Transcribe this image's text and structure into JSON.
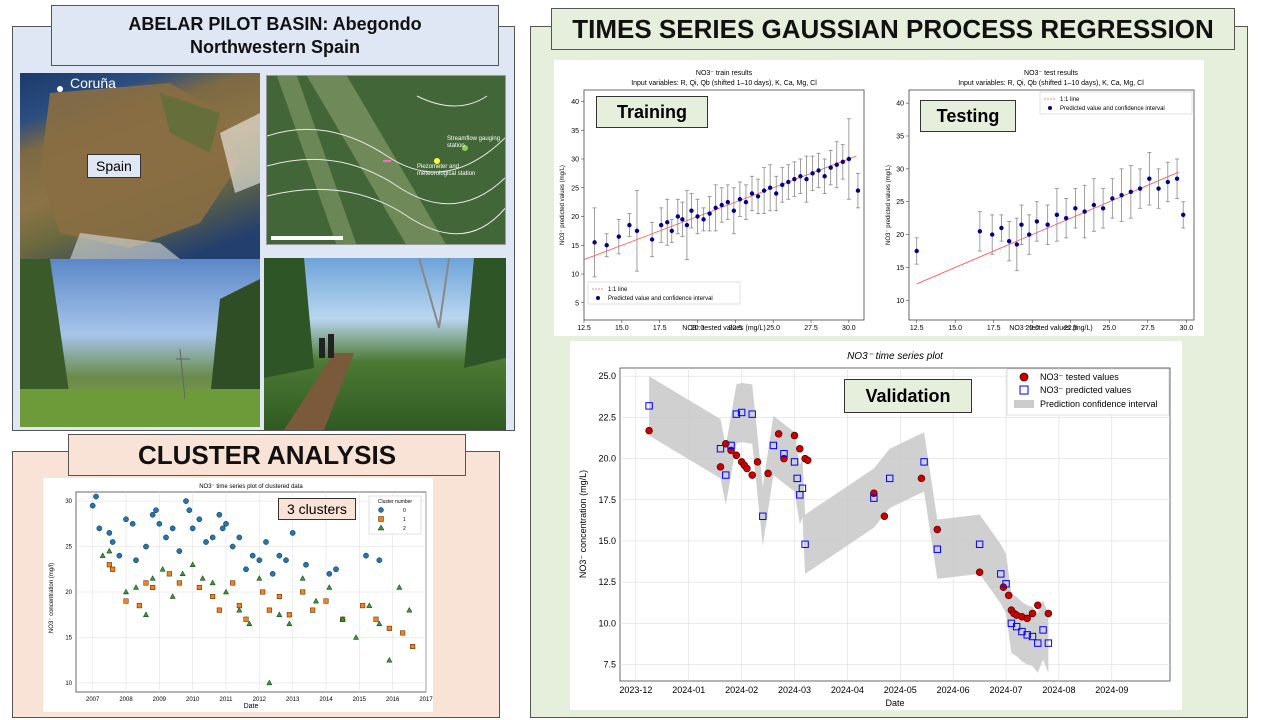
{
  "basin": {
    "title_line1": "ABELAR PILOT BASIN: Abegondo",
    "title_line2": "Northwestern Spain",
    "map_city": "Coruña",
    "map_country": "Spain",
    "station1": "Streamflow gauging station",
    "station2": "Piezometer and meteorological station"
  },
  "cluster": {
    "section_title": "CLUSTER ANALYSIS",
    "badge": "3 clusters",
    "chart_title": "NO3⁻ time series plot of clustered data",
    "xlabel": "Date",
    "ylabel": "NO3⁻ concentration (mg/l)",
    "legend_title": "Cluster number",
    "legend": [
      "0",
      "1",
      "2"
    ],
    "colors": [
      "#1f77b4",
      "#ff7f0e",
      "#2ca02c"
    ],
    "x_ticks": [
      "2007",
      "2008",
      "2009",
      "2010",
      "2011",
      "2012",
      "2013",
      "2014",
      "2015",
      "2016",
      "2017"
    ],
    "y_ticks": [
      "10",
      "15",
      "20",
      "25",
      "30"
    ]
  },
  "gpr": {
    "section_title": "TIMES SERIES GAUSSIAN PROCESS REGRESSION",
    "train_label": "Training",
    "test_label": "Testing",
    "validation_label": "Validation",
    "train_title": "NO3⁻ train results",
    "test_title": "NO3⁻ test results",
    "input_vars": "Input variables: R, Qi, Qb (shifted 1–10 days), K, Ca, Mg, Cl",
    "xlabel_tested": "NO3⁻ tested values (mg/L)",
    "ylabel_predicted": "NO3⁻ predicted values (mg/L)",
    "legend_line": "1:1 line",
    "legend_pred": "Predicted value and confidence interval",
    "train_x_ticks": [
      "12.5",
      "15.0",
      "17.5",
      "20.0",
      "22.5",
      "25.0",
      "27.5",
      "30.0"
    ],
    "train_y_ticks": [
      "5",
      "10",
      "15",
      "20",
      "25",
      "30",
      "35",
      "40"
    ],
    "test_x_ticks": [
      "12.5",
      "15.0",
      "17.5",
      "20.0",
      "22.5",
      "25.0",
      "27.5",
      "30.0"
    ],
    "test_y_ticks": [
      "10",
      "15",
      "20",
      "25",
      "30",
      "35",
      "40"
    ],
    "ts_title": "NO3⁻ time series plot",
    "ts_xlabel": "Date",
    "ts_ylabel": "NO3⁻ concentration (mg/L)",
    "ts_legend": [
      "NO3⁻ tested values",
      "NO3⁻ predicted values",
      "Prediction confidence interval"
    ],
    "ts_x_ticks": [
      "2023-12",
      "2024-01",
      "2024-02",
      "2024-03",
      "2024-04",
      "2024-05",
      "2024-06",
      "2024-07",
      "2024-08",
      "2024-09"
    ],
    "ts_y_ticks": [
      "7.5",
      "10.0",
      "12.5",
      "15.0",
      "17.5",
      "20.0",
      "22.5",
      "25.0"
    ]
  },
  "chart_data": [
    {
      "type": "scatter",
      "title": "NO3⁻ time series plot of clustered data",
      "xlabel": "Date",
      "ylabel": "NO3⁻ concentration (mg/l)",
      "xlim": [
        2006.5,
        2017.0
      ],
      "ylim": [
        9,
        31
      ],
      "series": [
        {
          "name": "0",
          "x": [
            2007.0,
            2007.1,
            2007.2,
            2007.5,
            2007.6,
            2007.8,
            2008.0,
            2008.2,
            2008.3,
            2008.6,
            2008.8,
            2008.9,
            2009.0,
            2009.2,
            2009.4,
            2009.6,
            2009.8,
            2009.9,
            2010.0,
            2010.2,
            2010.4,
            2010.6,
            2010.8,
            2010.9,
            2011.0,
            2011.2,
            2011.4,
            2011.6,
            2011.8,
            2012.0,
            2012.2,
            2012.4,
            2012.6,
            2012.8,
            2013.0,
            2013.4,
            2014.1,
            2014.3,
            2015.2,
            2015.6
          ],
          "y": [
            29.5,
            30.5,
            27.0,
            26.5,
            25.5,
            24.0,
            28.0,
            27.5,
            23.5,
            25.0,
            28.5,
            29.0,
            27.5,
            26.0,
            27.0,
            24.5,
            30.0,
            29.0,
            27.0,
            28.0,
            25.5,
            26.0,
            28.5,
            27.0,
            27.5,
            25.0,
            26.0,
            22.5,
            24.0,
            23.5,
            25.5,
            22.0,
            24.0,
            23.5,
            26.5,
            23.0,
            22.0,
            22.5,
            24.0,
            23.5
          ]
        },
        {
          "name": "1",
          "x": [
            2007.5,
            2007.6,
            2008.0,
            2008.4,
            2008.6,
            2008.8,
            2009.3,
            2009.6,
            2010.2,
            2010.6,
            2010.8,
            2011.2,
            2011.4,
            2011.6,
            2012.1,
            2012.3,
            2012.6,
            2012.9,
            2013.3,
            2013.6,
            2014.0,
            2014.5,
            2015.1,
            2015.5,
            2015.9,
            2016.3,
            2016.6
          ],
          "y": [
            23.0,
            22.5,
            19.0,
            18.5,
            21.0,
            20.5,
            22.0,
            21.0,
            20.5,
            19.5,
            18.0,
            21.0,
            18.5,
            17.0,
            20.0,
            18.0,
            19.5,
            17.5,
            20.0,
            18.0,
            19.0,
            17.0,
            18.5,
            17.0,
            16.0,
            15.5,
            14.0
          ]
        },
        {
          "name": "2",
          "x": [
            2007.3,
            2007.5,
            2008.0,
            2008.3,
            2008.6,
            2008.8,
            2009.1,
            2009.4,
            2009.7,
            2010.0,
            2010.3,
            2010.6,
            2011.0,
            2011.4,
            2011.7,
            2012.0,
            2012.3,
            2012.6,
            2012.9,
            2013.3,
            2013.7,
            2014.1,
            2014.5,
            2014.9,
            2015.3,
            2015.6,
            2015.9,
            2016.2,
            2016.5
          ],
          "y": [
            24.0,
            24.5,
            20.0,
            20.5,
            17.5,
            21.5,
            22.5,
            19.5,
            22.0,
            23.0,
            21.5,
            21.0,
            20.0,
            18.0,
            16.5,
            21.5,
            10.0,
            17.5,
            16.5,
            21.5,
            19.0,
            20.5,
            17.0,
            15.0,
            18.5,
            16.5,
            12.5,
            20.5,
            18.0
          ]
        }
      ]
    },
    {
      "type": "scatter",
      "title": "NO3⁻ train results",
      "xlabel": "NO3⁻ tested values (mg/L)",
      "ylabel": "NO3⁻ predicted values (mg/L)",
      "xlim": [
        12.5,
        31.0
      ],
      "ylim": [
        2,
        42
      ],
      "series": [
        {
          "name": "Predicted value and confidence interval",
          "x": [
            13.2,
            14.0,
            14.8,
            15.5,
            16.0,
            17.0,
            17.6,
            18.0,
            18.3,
            18.7,
            19.0,
            19.3,
            19.6,
            20.0,
            20.4,
            20.8,
            21.2,
            21.6,
            22.0,
            22.4,
            22.8,
            23.2,
            23.6,
            24.0,
            24.4,
            24.8,
            25.2,
            25.6,
            26.0,
            26.4,
            26.8,
            27.2,
            27.6,
            28.0,
            28.4,
            28.8,
            29.2,
            29.6,
            30.0,
            30.6
          ],
          "y": [
            15.5,
            15.0,
            16.5,
            18.5,
            17.5,
            16.0,
            18.5,
            19.0,
            17.5,
            20.0,
            19.5,
            18.5,
            21.0,
            20.0,
            19.5,
            20.5,
            21.5,
            22.0,
            22.5,
            21.0,
            23.0,
            22.5,
            24.0,
            23.5,
            24.5,
            25.0,
            24.0,
            25.5,
            26.0,
            26.5,
            27.0,
            26.5,
            27.5,
            28.0,
            27.0,
            28.5,
            29.0,
            29.5,
            30.0,
            24.5
          ],
          "err": [
            6,
            2,
            3,
            2,
            7,
            3,
            3,
            4,
            2,
            3,
            3,
            6,
            3,
            3,
            2,
            3,
            4,
            3,
            3,
            4,
            3,
            3,
            3,
            3,
            4,
            4,
            3,
            3,
            3,
            3,
            3,
            4,
            3,
            3,
            3,
            3,
            4,
            3,
            7,
            3
          ]
        },
        {
          "name": "1:1 line",
          "x": [
            12.5,
            30.5
          ],
          "y": [
            12.5,
            30.5
          ]
        }
      ]
    },
    {
      "type": "scatter",
      "title": "NO3⁻ test results",
      "xlabel": "NO3⁻ tested values (mg/L)",
      "ylabel": "NO3⁻ predicted values (mg/L)",
      "xlim": [
        12.0,
        30.5
      ],
      "ylim": [
        7,
        42
      ],
      "series": [
        {
          "name": "Predicted value and confidence interval",
          "x": [
            12.5,
            16.6,
            17.4,
            18.0,
            18.5,
            19.0,
            19.3,
            19.8,
            20.3,
            21.0,
            21.6,
            22.2,
            22.8,
            23.4,
            24.0,
            24.6,
            25.2,
            25.8,
            26.4,
            27.0,
            27.6,
            28.2,
            28.8,
            29.4,
            29.8
          ],
          "y": [
            17.5,
            20.5,
            20.0,
            21.0,
            19.0,
            18.5,
            21.5,
            20.0,
            22.0,
            21.5,
            23.0,
            22.5,
            24.0,
            23.5,
            24.5,
            24.0,
            25.5,
            26.0,
            26.5,
            27.0,
            28.5,
            27.0,
            28.0,
            28.5,
            23.0
          ],
          "err": [
            2,
            3,
            3,
            2,
            3,
            4,
            3,
            3,
            3,
            3,
            4,
            3,
            3,
            4,
            4,
            3,
            3,
            4,
            4,
            3,
            4,
            3,
            3,
            3,
            2
          ]
        },
        {
          "name": "1:1 line",
          "x": [
            12.5,
            29.5
          ],
          "y": [
            12.5,
            29.5
          ]
        }
      ]
    },
    {
      "type": "line",
      "title": "NO3⁻ time series plot",
      "xlabel": "Date",
      "ylabel": "NO3⁻ concentration (mg/L)",
      "xlim_months": [
        -1.3,
        9.1
      ],
      "ylim": [
        6.5,
        25.5
      ],
      "series": [
        {
          "name": "NO3⁻ tested values",
          "x": [
            -0.75,
            0.6,
            0.7,
            0.8,
            0.9,
            1.0,
            1.05,
            1.1,
            1.2,
            1.3,
            1.5,
            1.7,
            1.8,
            2.0,
            2.1,
            2.2,
            2.25,
            3.5,
            3.7,
            4.4,
            4.7,
            5.5,
            5.95,
            6.05,
            6.1,
            6.15,
            6.2,
            6.3,
            6.4,
            6.5,
            6.6,
            6.8
          ],
          "y": [
            21.7,
            19.5,
            20.9,
            20.5,
            20.2,
            19.8,
            19.6,
            19.4,
            19.0,
            19.8,
            19.1,
            21.5,
            20.0,
            21.4,
            20.6,
            20.0,
            19.9,
            17.9,
            16.5,
            18.8,
            15.7,
            13.1,
            12.2,
            11.7,
            10.8,
            10.6,
            10.5,
            10.4,
            10.3,
            10.6,
            11.1,
            10.6
          ]
        },
        {
          "name": "NO3⁻ predicted values",
          "x": [
            -0.75,
            0.6,
            0.7,
            0.8,
            0.9,
            1.0,
            1.2,
            1.4,
            1.6,
            1.8,
            2.0,
            2.05,
            2.1,
            2.15,
            2.2,
            3.5,
            3.8,
            4.45,
            4.7,
            5.5,
            5.9,
            6.0,
            6.1,
            6.2,
            6.3,
            6.4,
            6.5,
            6.6,
            6.7,
            6.8
          ],
          "y": [
            23.2,
            20.6,
            19.0,
            20.8,
            22.7,
            22.8,
            22.7,
            16.5,
            20.8,
            20.3,
            19.8,
            18.8,
            17.8,
            18.2,
            14.8,
            17.6,
            18.8,
            19.8,
            14.5,
            14.8,
            13.0,
            12.4,
            10.0,
            9.8,
            9.5,
            9.3,
            9.2,
            8.8,
            9.6,
            8.8
          ]
        }
      ]
    }
  ]
}
